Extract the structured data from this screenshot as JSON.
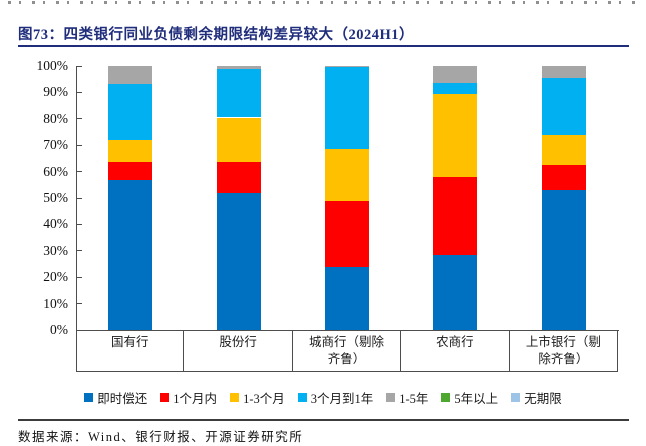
{
  "page": {
    "title": "图73：四类银行同业负债剩余期限结构差异较大（2024H1）",
    "source_note": "数据来源：Wind、银行财报、开源证券研究所"
  },
  "colors": {
    "title_navy": "#1F2D7B",
    "axis": "#4d4d4d",
    "text": "#1a1a1a"
  },
  "chart_data": {
    "type": "bar",
    "stacked": true,
    "title": "图73：四类银行同业负债剩余期限结构差异较大（2024H1）",
    "categories": [
      "国有行",
      "股份行",
      "城商行（剔除齐鲁）",
      "农商行",
      "上市银行（剔除齐鲁）"
    ],
    "series": [
      {
        "name": "即时偿还",
        "color": "#0070C0",
        "values": [
          57,
          52,
          24,
          28.5,
          53
        ]
      },
      {
        "name": "1个月内",
        "color": "#FF0000",
        "values": [
          6.5,
          11.5,
          25,
          29.5,
          9.5
        ]
      },
      {
        "name": "1-3个月",
        "color": "#FFC000",
        "values": [
          8.5,
          17,
          19.5,
          31.5,
          11.5
        ]
      },
      {
        "name": "3个月到1年",
        "color": "#00B0F0",
        "values": [
          21,
          18.5,
          31,
          4,
          21.5
        ]
      },
      {
        "name": "1-5年",
        "color": "#A6A6A6",
        "values": [
          7,
          1,
          0.5,
          6.5,
          4.5
        ]
      },
      {
        "name": "5年以上",
        "color": "#4EA72E",
        "values": [
          0,
          0,
          0,
          0,
          0
        ]
      },
      {
        "name": "无期限",
        "color": "#9DC3E6",
        "values": [
          0,
          0,
          0,
          0,
          0
        ]
      }
    ],
    "ylim": [
      0,
      100
    ],
    "y_ticks": [
      "0%",
      "10%",
      "20%",
      "30%",
      "40%",
      "50%",
      "60%",
      "70%",
      "80%",
      "90%",
      "100%"
    ],
    "grid": false,
    "legend_position": "bottom"
  }
}
